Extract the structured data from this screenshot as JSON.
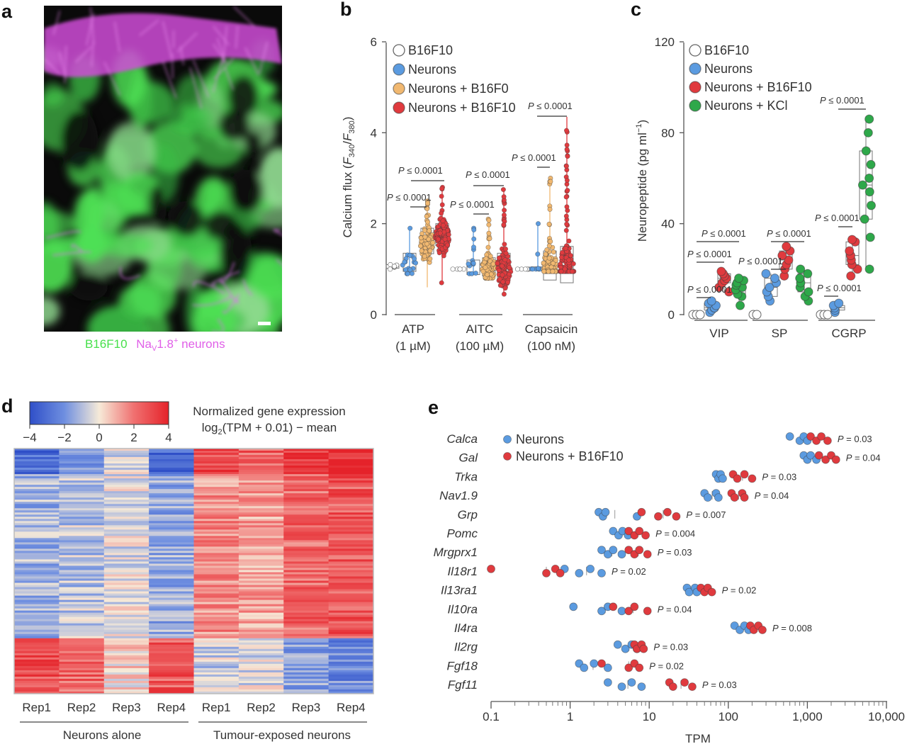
{
  "panels": {
    "a": "a",
    "b": "b",
    "c": "c",
    "d": "d",
    "e": "e"
  },
  "panel_a": {
    "caption_green": "B16F10",
    "caption_magenta_main": "Na",
    "caption_magenta_sub": "V",
    "caption_magenta_rest": "1.8",
    "caption_magenta_sup": "+",
    "caption_magenta_tail": " neurons",
    "green": "#46e04a",
    "magenta": "#e060e8"
  },
  "legend_colors": {
    "B16F10": "#ffffff",
    "Neurons": "#5b9be0",
    "Neurons + B16F0": "#f1b870",
    "Neurons + B16F10": "#e03a3e",
    "Neurons + KCl": "#2ea84a"
  },
  "chart_data": [
    {
      "id": "b",
      "type": "scatter",
      "ylabel_main": "Calcium flux (",
      "ylabel_f1": "F",
      "ylabel_s1": "340",
      "ylabel_slash": "/",
      "ylabel_f2": "F",
      "ylabel_s2": "380",
      "ylabel_end": ")",
      "ylim": [
        0,
        6
      ],
      "yticks": [
        "0",
        "2",
        "4",
        "6"
      ],
      "legend": [
        "B16F10",
        "Neurons",
        "Neurons + B16F0",
        "Neurons + B16F10"
      ],
      "groups": [
        {
          "label": "ATP",
          "sublabel": "(1 µM)",
          "series": [
            {
              "name": "B16F10",
              "median": 1.05
            },
            {
              "name": "Neurons",
              "median": 1.1
            },
            {
              "name": "Neurons + B16F0",
              "median": 1.55
            },
            {
              "name": "Neurons + B16F10",
              "median": 1.7
            }
          ]
        },
        {
          "label": "AITC",
          "sublabel": "(100 µM)",
          "series": [
            {
              "name": "B16F10",
              "median": 1.0
            },
            {
              "name": "Neurons",
              "median": 1.0
            },
            {
              "name": "Neurons + B16F0",
              "median": 1.0
            },
            {
              "name": "Neurons + B16F10",
              "median": 1.0
            }
          ]
        },
        {
          "label": "Capsaicin",
          "sublabel": "(100 nM)",
          "series": [
            {
              "name": "B16F10",
              "median": 1.0
            },
            {
              "name": "Neurons",
              "median": 1.0
            },
            {
              "name": "Neurons + B16F0",
              "median": 1.0
            },
            {
              "name": "Neurons + B16F10",
              "median": 1.0
            }
          ]
        }
      ],
      "annotations": [
        {
          "text_p": "P",
          "text": " ≤ 0.0001",
          "group": 0,
          "pair": "neurons-b16f0"
        },
        {
          "text_p": "P",
          "text": " ≤ 0.0001",
          "group": 0,
          "pair": "neurons-b16f10"
        },
        {
          "text_p": "P",
          "text": " ≤ 0.0001",
          "group": 1,
          "pair": "neurons-b16f0"
        },
        {
          "text_p": "P",
          "text": " ≤ 0.0001",
          "group": 1,
          "pair": "neurons-b16f10"
        },
        {
          "text_p": "P",
          "text": " ≤ 0.0001",
          "group": 2,
          "pair": "neurons-b16f0"
        },
        {
          "text_p": "P",
          "text": " ≤ 0.0001",
          "group": 2,
          "pair": "neurons-b16f10"
        }
      ]
    },
    {
      "id": "c",
      "type": "scatter",
      "ylabel_main": "Neuropeptide (pg ml",
      "ylabel_sup": "−1",
      "ylabel_end": ")",
      "ylim": [
        0,
        120
      ],
      "yticks": [
        "0",
        "40",
        "80",
        "120"
      ],
      "legend": [
        "B16F10",
        "Neurons",
        "Neurons + B16F10",
        "Neurons + KCl"
      ],
      "groups": [
        {
          "label": "VIP",
          "series": [
            {
              "name": "B16F10",
              "values": [
                0,
                0,
                0
              ]
            },
            {
              "name": "Neurons",
              "values": [
                1,
                2,
                3,
                3,
                4,
                5,
                6
              ]
            },
            {
              "name": "Neurons + B16F10",
              "values": [
                10,
                12,
                14,
                15,
                16,
                17,
                18,
                19
              ]
            },
            {
              "name": "Neurons + KCl",
              "values": [
                4,
                8,
                9,
                11,
                12,
                13,
                14,
                15,
                16
              ]
            }
          ]
        },
        {
          "label": "SP",
          "series": [
            {
              "name": "B16F10",
              "values": [
                0,
                0
              ]
            },
            {
              "name": "Neurons",
              "values": [
                6,
                8,
                10,
                12,
                14,
                16,
                18
              ]
            },
            {
              "name": "Neurons + B16F10",
              "values": [
                17,
                20,
                22,
                24,
                26,
                28,
                30
              ]
            },
            {
              "name": "Neurons + KCl",
              "values": [
                6,
                8,
                10,
                12,
                14,
                16,
                18,
                20
              ]
            }
          ]
        },
        {
          "label": "CGRP",
          "series": [
            {
              "name": "B16F10",
              "values": [
                0,
                0,
                0
              ]
            },
            {
              "name": "Neurons",
              "values": [
                1,
                2,
                3,
                4,
                5
              ]
            },
            {
              "name": "Neurons + B16F10",
              "values": [
                17,
                20,
                22,
                24,
                26,
                28,
                32,
                33
              ]
            },
            {
              "name": "Neurons + KCl",
              "values": [
                20,
                34,
                42,
                48,
                54,
                57,
                60,
                66,
                72,
                80,
                86
              ]
            }
          ]
        }
      ],
      "annotations": [
        {
          "text_p": "P",
          "text": " ≤ 0.0001",
          "group": 0,
          "pair": "B16F10-neurons"
        },
        {
          "text_p": "P",
          "text": " ≤ 0.0001",
          "group": 0,
          "pair": "neurons-b16f10"
        },
        {
          "text_p": "P",
          "text": " ≤ 0.0001",
          "group": 0,
          "pair": "neurons-kcl"
        },
        {
          "text_p": "P",
          "text": " ≤ 0.0001",
          "group": 1,
          "pair": "neurons-b16f10"
        },
        {
          "text_p": "P",
          "text": " ≤ 0.0001",
          "group": 1,
          "pair": "neurons-kcl"
        },
        {
          "text_p": "P",
          "text": " ≤ 0.0001",
          "group": 2,
          "pair": "B16F10-neurons"
        },
        {
          "text_p": "P",
          "text": " ≤ 0.0001",
          "group": 2,
          "pair": "neurons-b16f10"
        },
        {
          "text_p": "P",
          "text": " ≤ 0.0001",
          "group": 2,
          "pair": "neurons-kcl"
        }
      ]
    },
    {
      "id": "d",
      "type": "heatmap",
      "colorbar_title": "Normalized gene expression",
      "colorbar_sub_main": "log",
      "colorbar_sub_sub": "2",
      "colorbar_sub_rest": "(TPM + 0.01) − mean",
      "colorbar_ticks": [
        "−4",
        "−2",
        "0",
        "2",
        "4"
      ],
      "colorbar_range": [
        -4,
        4
      ],
      "columns": [
        "Rep1",
        "Rep2",
        "Rep3",
        "Rep4",
        "Rep1",
        "Rep2",
        "Rep3",
        "Rep4"
      ],
      "groups": [
        "Neurons alone",
        "Tumour-exposed neurons"
      ]
    },
    {
      "id": "e",
      "type": "scatter",
      "xlabel": "TPM",
      "xscale": "log",
      "xlim": [
        0.1,
        10000
      ],
      "xticks": [
        "0.1",
        "1",
        "10",
        "100",
        "1,000",
        "10,000"
      ],
      "legend": [
        "Neurons",
        "Neurons + B16F10"
      ],
      "genes": [
        {
          "name": "Calca",
          "p": "P",
          "pv": " = 0.03",
          "neurons": [
            600,
            800,
            900,
            1000
          ],
          "tumour": [
            1100,
            1300,
            1500,
            1800
          ]
        },
        {
          "name": "Gal",
          "p": "P",
          "pv": " = 0.04",
          "neurons": [
            900,
            1000,
            1100,
            1300
          ],
          "tumour": [
            1400,
            1700,
            2000,
            2300
          ]
        },
        {
          "name": "Trka",
          "p": "P",
          "pv": " = 0.03",
          "neurons": [
            70,
            75,
            80,
            85
          ],
          "tumour": [
            115,
            130,
            160,
            200
          ]
        },
        {
          "name": "Nav1.9",
          "p": "P",
          "pv": " = 0.04",
          "neurons": [
            50,
            55,
            70,
            75
          ],
          "tumour": [
            110,
            120,
            150,
            160
          ]
        },
        {
          "name": "Grp",
          "p": "P",
          "pv": " = 0.007",
          "neurons": [
            2.3,
            2.6,
            2.8,
            7
          ],
          "tumour": [
            8,
            13,
            17,
            22
          ]
        },
        {
          "name": "Pomc",
          "p": "P",
          "pv": " = 0.004",
          "neurons": [
            3.5,
            4.1,
            4.6,
            5.4
          ],
          "tumour": [
            5.5,
            6.5,
            7.5,
            9
          ]
        },
        {
          "name": "Mrgprx1",
          "p": "P",
          "pv": " = 0.03",
          "neurons": [
            2.5,
            3,
            3.5,
            4.5
          ],
          "tumour": [
            5.5,
            6.5,
            7.5,
            9.5
          ]
        },
        {
          "name": "Il18r1",
          "p": "P",
          "pv": " = 0.02",
          "neurons": [
            0.85,
            1.3,
            1.8,
            2.5
          ],
          "tumour": [
            0.1,
            0.5,
            0.65,
            0.75
          ]
        },
        {
          "name": "Il13ra1",
          "p": "P",
          "pv": " = 0.02",
          "neurons": [
            30,
            32,
            38,
            40
          ],
          "tumour": [
            45,
            50,
            55,
            62
          ]
        },
        {
          "name": "Il10ra",
          "p": "P",
          "pv": " = 0.04",
          "neurons": [
            1.1,
            2.5,
            3,
            4.5
          ],
          "tumour": [
            3.5,
            5.5,
            6.5,
            9.5
          ]
        },
        {
          "name": "Il4ra",
          "p": "P",
          "pv": " = 0.008",
          "neurons": [
            120,
            140,
            160,
            180
          ],
          "tumour": [
            190,
            210,
            240,
            270
          ]
        },
        {
          "name": "Il2rg",
          "p": "P",
          "pv": " = 0.03",
          "neurons": [
            4,
            5,
            6,
            7
          ],
          "tumour": [
            6.5,
            7,
            8,
            8.5
          ]
        },
        {
          "name": "Fgf18",
          "p": "P",
          "pv": " = 0.02",
          "neurons": [
            1.3,
            1.5,
            2,
            3
          ],
          "tumour": [
            2.5,
            5.5,
            6.5,
            7.5
          ]
        },
        {
          "name": "Fgf11",
          "p": "P",
          "pv": " = 0.03",
          "neurons": [
            3,
            4.5,
            6,
            8
          ],
          "tumour": [
            18,
            20,
            28,
            35
          ]
        }
      ]
    }
  ]
}
